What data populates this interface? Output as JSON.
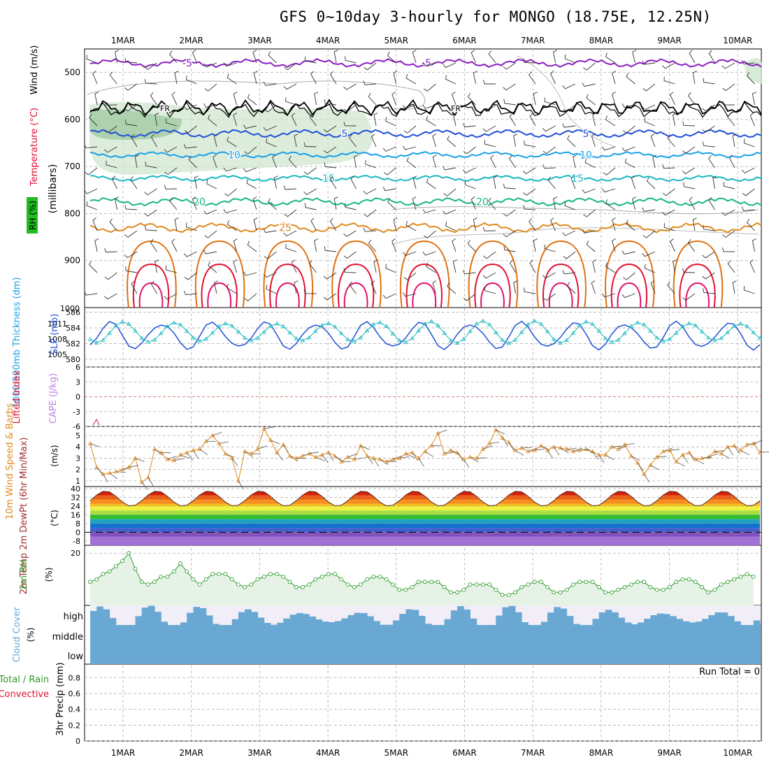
{
  "title": "GFS 0~10day 3-hourly for MONGO (18.75E, 12.25N)",
  "dates": [
    "1MAR",
    "2MAR",
    "3MAR",
    "4MAR",
    "5MAR",
    "6MAR",
    "7MAR",
    "8MAR",
    "9MAR",
    "10MAR"
  ],
  "run_total": "Run Total = 0",
  "colors": {
    "grid": "#b0b0b0",
    "purple": "#8a1fc0",
    "blue": "#2050d8",
    "sky": "#1aa0e8",
    "teal": "#18b8c0",
    "green_c": "#18b880",
    "orange": "#e08a20",
    "darkorange": "#e07010",
    "red": "#e01030",
    "magenta": "#e0106a",
    "cloud": "#6aa8d4",
    "cloud_bg": "#f2eef8",
    "rh_fill": "#e6f2e6",
    "rh_line": "#2a9a2a"
  },
  "labels": {
    "wind": "Wind (m/s)",
    "temperature": "Temperature (°C)",
    "millibars": "(millibars)",
    "rh": "RH (%)",
    "thickness": "1000-500mb Thickness (dm)",
    "slp": "SLP (mb)",
    "lifted": "Lifted Index",
    "cape": "CAPE (J/kg)",
    "wind10": "10m Wind Speed & Barbs",
    "wind10_units": "(m/s)",
    "t2m": "2m Temp 2m DewPt (6hr Min/Max)",
    "t2m_units": "(°C)",
    "rh2m": "2m RH",
    "rh2m_units": "(%)",
    "cloud": "Cloud Cover",
    "cloud_units": "(%)",
    "precip": "3hr Precip (mm)",
    "total_rain": "Total / Rain",
    "convective": "Convective",
    "high": "high",
    "middle": "middle",
    "low": "low",
    "fr": "FR"
  },
  "chart_data": [
    {
      "type": "line",
      "name": "upper-air",
      "yticks": [
        500,
        600,
        700,
        800,
        900
      ],
      "ylim": [
        1000,
        450
      ],
      "contours": [
        {
          "label": "-5",
          "level_mb": 480
        },
        {
          "label": "FR",
          "level_mb": 575
        },
        {
          "label": "5",
          "level_mb": 630
        },
        {
          "label": "10",
          "level_mb": 675
        },
        {
          "label": "15",
          "level_mb": 725
        },
        {
          "label": "20",
          "level_mb": 775
        },
        {
          "label": "25",
          "level_mb": 830
        }
      ]
    },
    {
      "type": "line",
      "name": "slp-thickness",
      "yticks_left": [
        580,
        582,
        584,
        586
      ],
      "yticks_right": [
        1005,
        1008,
        1011,
        1014
      ],
      "right_top_label": "1000"
    },
    {
      "type": "line",
      "name": "lifted-cape",
      "yticks": [
        -6,
        -3,
        0,
        3,
        6
      ],
      "yticklabels": [
        "6",
        "3",
        "0",
        "-3",
        "-6"
      ]
    },
    {
      "type": "line",
      "name": "wind10",
      "yticks": [
        1,
        2,
        3,
        4,
        5
      ],
      "ylim": [
        0.5,
        5.8
      ],
      "values": [
        4.3,
        2.2,
        1.6,
        1.7,
        1.8,
        2.0,
        2.2,
        3.0,
        0.9,
        1.3,
        3.8,
        3.5,
        2.9,
        2.8,
        3.3,
        3.5,
        3.7,
        3.8,
        4.5,
        5.0,
        4.3,
        3.4,
        3.0,
        1.0,
        3.6,
        3.4,
        3.8,
        5.6,
        4.6,
        3.5,
        4.2,
        3.2,
        3.0,
        3.2,
        3.4,
        3.1,
        3.3,
        3.5,
        3.2,
        2.7,
        3.1,
        2.9,
        4.1,
        3.2,
        3.0,
        2.9,
        2.7,
        2.9,
        3.0,
        3.4,
        3.5,
        3.0,
        3.6,
        4.1,
        5.2,
        3.4,
        3.7,
        3.5,
        2.9,
        3.1,
        3.0,
        3.8,
        4.3,
        5.5,
        4.8,
        4.4,
        3.7,
        3.9,
        3.6,
        3.7,
        4.1,
        3.7,
        4.0,
        3.9,
        3.8,
        3.6,
        3.7,
        3.8,
        3.6,
        3.3,
        3.3,
        4.0,
        3.8,
        4.2,
        3.2,
        2.6,
        1.6,
        2.4,
        3.1,
        3.6,
        3.7,
        2.7,
        3.3,
        3.5,
        2.9,
        3.0,
        3.1,
        3.6,
        3.4,
        4.0,
        4.1,
        3.7,
        4.2,
        4.3,
        3.5
      ]
    },
    {
      "type": "area",
      "name": "t2m",
      "yticks": [
        -8,
        0,
        8,
        16,
        24,
        32,
        40
      ],
      "ylim": [
        -12,
        42
      ],
      "t_max": 38,
      "t_min": 24,
      "dew": -1
    },
    {
      "type": "area",
      "name": "rh2m",
      "yticks": [
        20
      ],
      "ylim": [
        0,
        23
      ],
      "values": [
        9,
        10,
        12,
        13,
        15,
        17,
        20,
        14,
        9,
        8,
        9,
        11,
        11,
        13,
        16,
        13,
        10,
        8,
        10,
        12,
        12,
        12,
        10,
        8,
        7,
        8,
        10,
        11,
        12,
        12,
        11,
        9,
        7,
        7,
        8,
        10,
        11,
        12,
        12,
        10,
        8,
        7,
        8,
        10,
        11,
        11,
        10,
        8,
        6,
        6,
        7,
        9,
        9,
        9,
        9,
        7,
        5,
        5,
        6,
        8,
        8,
        8,
        8,
        6,
        4,
        4,
        5,
        7,
        8,
        9,
        9,
        7,
        5,
        5,
        6,
        8,
        9,
        9,
        9,
        7,
        5,
        5,
        6,
        7,
        8,
        9,
        9,
        7,
        6,
        6,
        7,
        9,
        10,
        10,
        9,
        7,
        5,
        6,
        8,
        9,
        10,
        11,
        12,
        11
      ]
    },
    {
      "type": "bar",
      "name": "cloud-cover",
      "categories": [
        "high",
        "middle",
        "low"
      ]
    },
    {
      "type": "line",
      "name": "precip",
      "yticks": [
        0,
        0.2,
        0.4,
        0.6,
        0.8
      ],
      "ylim": [
        0,
        0.97
      ],
      "values": []
    }
  ]
}
